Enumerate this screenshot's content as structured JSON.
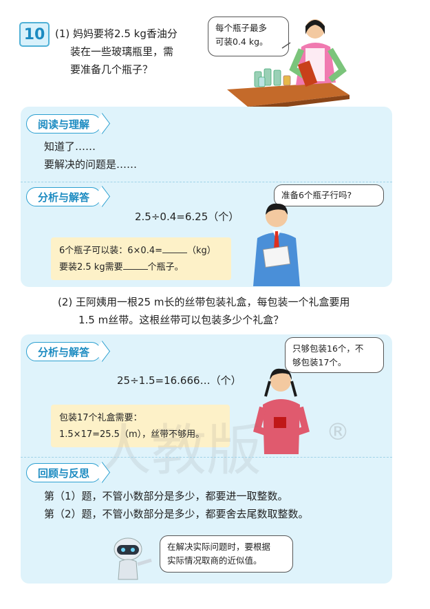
{
  "problem_number": "10",
  "part1": {
    "question_lines": [
      "(1) 妈妈要将2.5 kg香油分",
      "装在一些玻璃瓶里，需",
      "要准备几个瓶子？"
    ],
    "mother_bubble": [
      "每个瓶子最多",
      "可装0.4 kg。"
    ]
  },
  "section_read": {
    "label": "阅读与理解",
    "lines": [
      "知道了……",
      "要解决的问题是……"
    ]
  },
  "section_analyze1": {
    "label": "分析与解答",
    "equation": "2.5÷0.4=6.25（个）",
    "boy_bubble": "准备6个瓶子行吗?",
    "box_line1_prefix": "6个瓶子可以装：6×0.4=",
    "box_line1_suffix": "（kg）",
    "box_line2_prefix": "要装2.5 kg需要",
    "box_line2_suffix": "个瓶子。"
  },
  "part2": {
    "question_lines": [
      "(2) 王阿姨用一根25 m长的丝带包装礼盒，每包装一个礼盒要用",
      "1.5 m丝带。这根丝带可以包装多少个礼盒？"
    ]
  },
  "section_analyze2": {
    "label": "分析与解答",
    "equation": "25÷1.5=16.666…（个）",
    "girl_bubble": [
      "只够包装16个，不",
      "够包装17个。"
    ],
    "box_lines": [
      "包装17个礼盒需要：",
      "1.5×17=25.5（m），丝带不够用。"
    ]
  },
  "section_review": {
    "label": "回顾与反思",
    "lines": [
      "第（1）题，不管小数部分是多少，都要进一取整数。",
      "第（2）题，不管小数部分是多少，都要舍去尾数取整数。"
    ],
    "robot_bubble": [
      "在解决实际问题时，要根据",
      "实际情况取商的近似值。"
    ]
  },
  "watermark": "人教版",
  "watermark_mark": "®",
  "colors": {
    "accent": "#1c8bc1",
    "panel": "#dff3fb",
    "note": "#fdf1c8"
  }
}
